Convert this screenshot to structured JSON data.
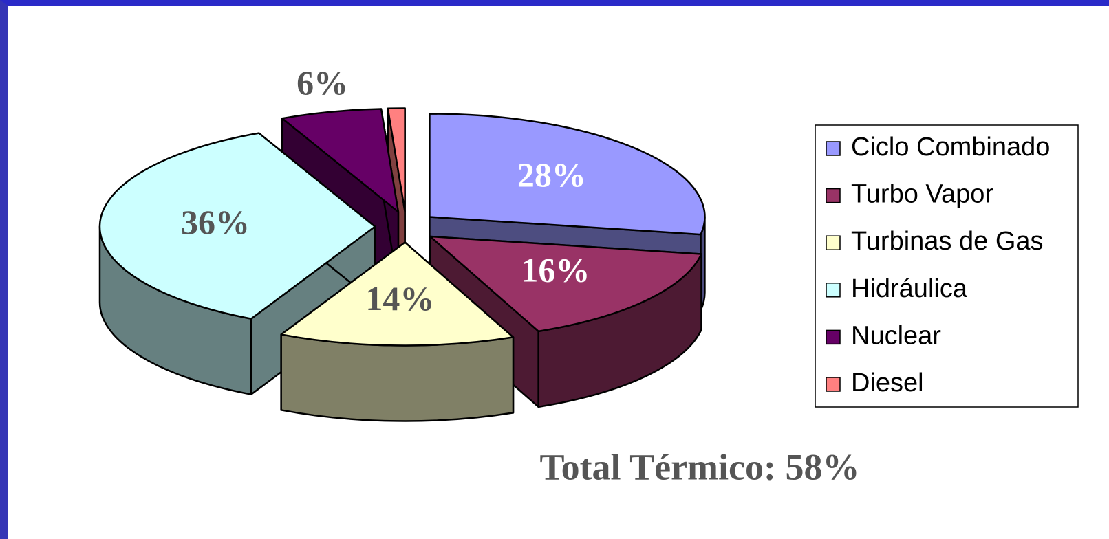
{
  "chart_data": {
    "type": "pie3d",
    "categories": [
      "Ciclo Combinado",
      "Turbo Vapor",
      "Turbinas de Gas",
      "Hidráulica",
      "Nuclear",
      "Diesel"
    ],
    "values": [
      28,
      16,
      14,
      36,
      6,
      1
    ],
    "value_labels": [
      "28%",
      "16%",
      "14%",
      "36%",
      "6%",
      null
    ],
    "colors": [
      "#9999ff",
      "#993366",
      "#ffffcc",
      "#ccffff",
      "#660066",
      "#ff8080"
    ],
    "label_colors": [
      "#ffffff",
      "#ffffff",
      "#555555",
      "#555555",
      "#555555",
      "#555555"
    ],
    "legend": "right",
    "annotation": "Total Térmico: 58%"
  }
}
